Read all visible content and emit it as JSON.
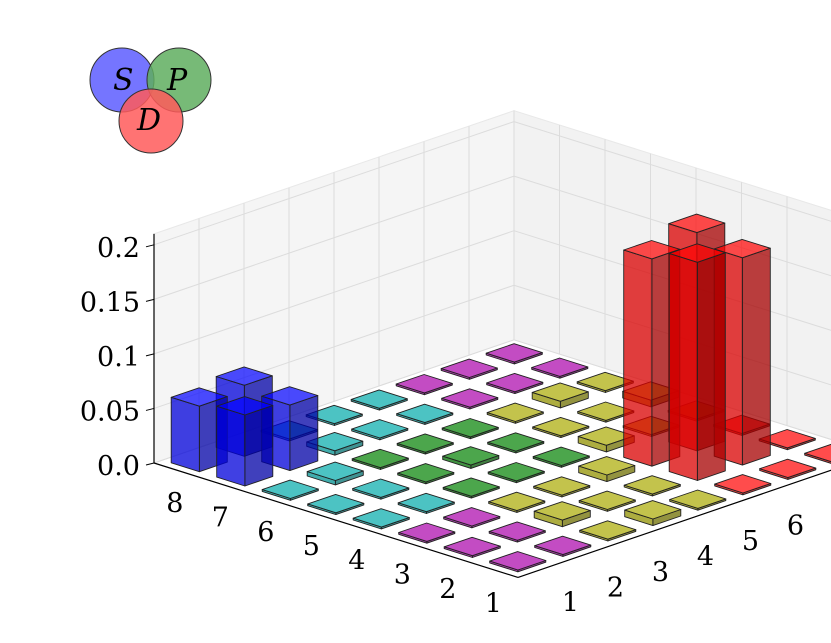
{
  "chart_data": {
    "type": "bar3d",
    "x_ticks": [
      "1",
      "2",
      "3",
      "4",
      "5",
      "6",
      "7",
      "8"
    ],
    "y_ticks": [
      "1",
      "2",
      "3",
      "4",
      "5",
      "6",
      "7",
      "8"
    ],
    "z_ticks": [
      "0.0",
      "0.05",
      "0.1",
      "0.15",
      "0.2"
    ],
    "zlim": [
      0,
      0.21
    ],
    "grid": true,
    "colors": {
      "S": "#0000ff",
      "P": "#008000",
      "D": "#ff0000",
      "SP": "#00aaaa",
      "SD": "#aa00aa",
      "PD": "#aaaa00"
    },
    "legend": {
      "S": "S",
      "P": "P",
      "D": "D"
    },
    "legend_colors": {
      "S": "#6666ff",
      "P": "#5fae5f",
      "D": "#ff5a5a"
    },
    "block_ranges": {
      "S": [
        1,
        2
      ],
      "P": [
        3,
        5
      ],
      "D": [
        6,
        8
      ]
    },
    "bars": [
      {
        "x": 1,
        "y": 1,
        "z": 0.06
      },
      {
        "x": 1,
        "y": 2,
        "z": 0.065
      },
      {
        "x": 2,
        "y": 1,
        "z": 0.065
      },
      {
        "x": 2,
        "y": 2,
        "z": 0.06
      },
      {
        "x": 1,
        "y": 3,
        "z": 0.0
      },
      {
        "x": 1,
        "y": 4,
        "z": 0.0
      },
      {
        "x": 1,
        "y": 5,
        "z": 0.0
      },
      {
        "x": 2,
        "y": 3,
        "z": 0.004
      },
      {
        "x": 2,
        "y": 4,
        "z": 0.0
      },
      {
        "x": 2,
        "y": 5,
        "z": 0.0
      },
      {
        "x": 3,
        "y": 1,
        "z": 0.0
      },
      {
        "x": 3,
        "y": 2,
        "z": 0.004
      },
      {
        "x": 4,
        "y": 1,
        "z": 0.0
      },
      {
        "x": 4,
        "y": 2,
        "z": 0.0
      },
      {
        "x": 5,
        "y": 1,
        "z": 0.0
      },
      {
        "x": 5,
        "y": 2,
        "z": 0.0
      },
      {
        "x": 6,
        "y": 1,
        "z": 0.0
      },
      {
        "x": 6,
        "y": 2,
        "z": 0.0
      },
      {
        "x": 7,
        "y": 1,
        "z": 0.0
      },
      {
        "x": 7,
        "y": 2,
        "z": 0.0
      },
      {
        "x": 8,
        "y": 1,
        "z": 0.0
      },
      {
        "x": 8,
        "y": 2,
        "z": 0.0
      },
      {
        "x": 1,
        "y": 6,
        "z": 0.0
      },
      {
        "x": 1,
        "y": 7,
        "z": 0.0
      },
      {
        "x": 1,
        "y": 8,
        "z": 0.0
      },
      {
        "x": 2,
        "y": 6,
        "z": 0.0
      },
      {
        "x": 2,
        "y": 7,
        "z": 0.0
      },
      {
        "x": 2,
        "y": 8,
        "z": 0.0
      },
      {
        "x": 3,
        "y": 3,
        "z": 0.0
      },
      {
        "x": 3,
        "y": 4,
        "z": 0.0
      },
      {
        "x": 3,
        "y": 5,
        "z": 0.0
      },
      {
        "x": 4,
        "y": 3,
        "z": 0.0
      },
      {
        "x": 4,
        "y": 4,
        "z": 0.003
      },
      {
        "x": 4,
        "y": 5,
        "z": 0.0
      },
      {
        "x": 5,
        "y": 3,
        "z": 0.0
      },
      {
        "x": 5,
        "y": 4,
        "z": 0.0
      },
      {
        "x": 5,
        "y": 5,
        "z": 0.0
      },
      {
        "x": 3,
        "y": 6,
        "z": 0.0
      },
      {
        "x": 3,
        "y": 7,
        "z": 0.006
      },
      {
        "x": 3,
        "y": 8,
        "z": 0.0
      },
      {
        "x": 4,
        "y": 6,
        "z": 0.0
      },
      {
        "x": 4,
        "y": 7,
        "z": 0.0
      },
      {
        "x": 4,
        "y": 8,
        "z": 0.006
      },
      {
        "x": 5,
        "y": 6,
        "z": 0.006
      },
      {
        "x": 5,
        "y": 7,
        "z": 0.0
      },
      {
        "x": 5,
        "y": 8,
        "z": 0.0
      },
      {
        "x": 6,
        "y": 3,
        "z": 0.0
      },
      {
        "x": 6,
        "y": 4,
        "z": 0.0
      },
      {
        "x": 6,
        "y": 5,
        "z": 0.006
      },
      {
        "x": 7,
        "y": 3,
        "z": 0.006
      },
      {
        "x": 7,
        "y": 4,
        "z": 0.0
      },
      {
        "x": 7,
        "y": 5,
        "z": 0.0
      },
      {
        "x": 8,
        "y": 3,
        "z": 0.0
      },
      {
        "x": 8,
        "y": 4,
        "z": 0.006
      },
      {
        "x": 8,
        "y": 5,
        "z": 0.0
      },
      {
        "x": 6,
        "y": 6,
        "z": 0.19
      },
      {
        "x": 6,
        "y": 7,
        "z": 0.2
      },
      {
        "x": 7,
        "y": 6,
        "z": 0.2
      },
      {
        "x": 7,
        "y": 7,
        "z": 0.19
      },
      {
        "x": 6,
        "y": 8,
        "z": 0.0
      },
      {
        "x": 7,
        "y": 8,
        "z": 0.0
      },
      {
        "x": 8,
        "y": 6,
        "z": 0.0
      },
      {
        "x": 8,
        "y": 7,
        "z": 0.0
      },
      {
        "x": 8,
        "y": 8,
        "z": 0.0
      }
    ]
  }
}
